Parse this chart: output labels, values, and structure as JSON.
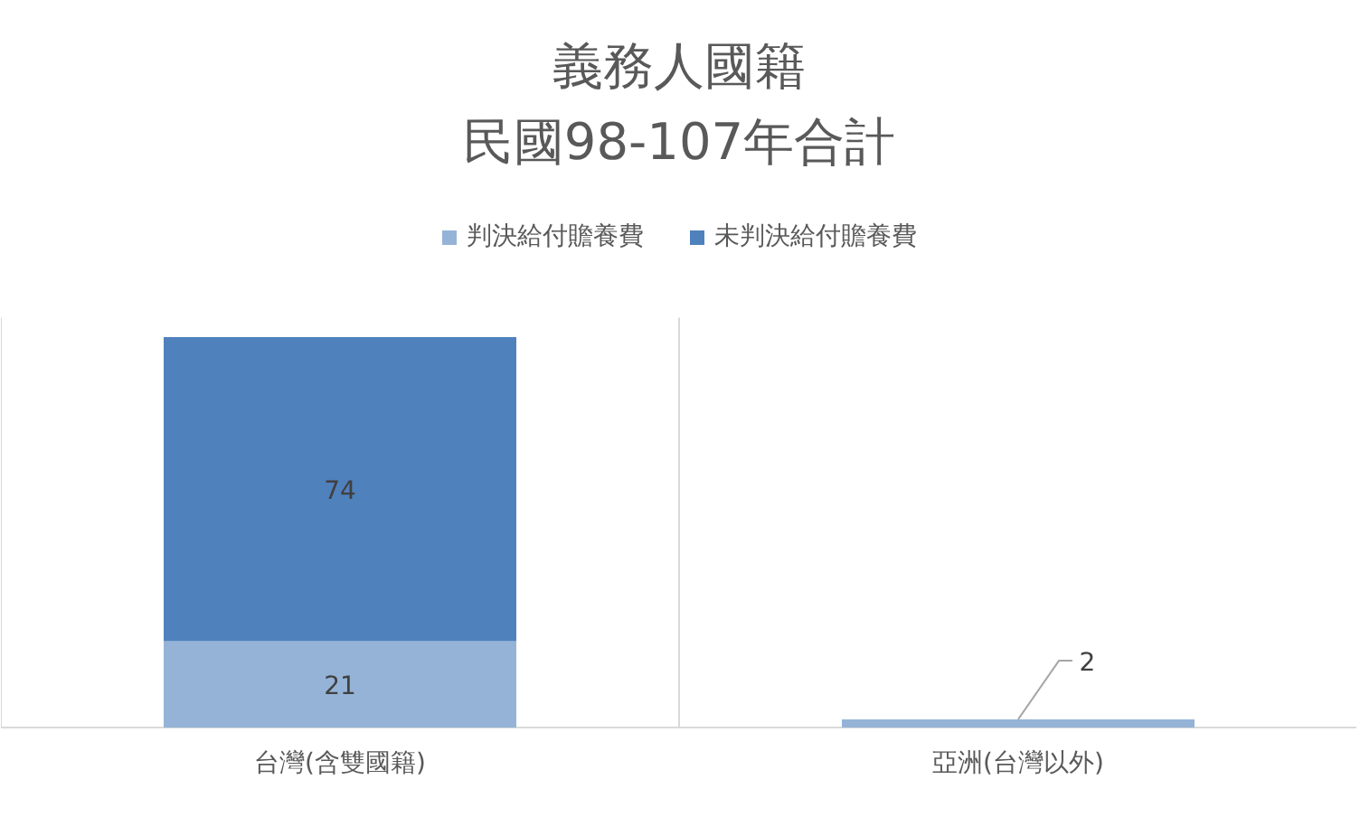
{
  "chart_data": {
    "type": "bar",
    "title": "義務人國籍",
    "subtitle": "民國98-107年合計",
    "stacked": true,
    "categories": [
      "台灣(含雙國籍)",
      "亞洲(台灣以外)"
    ],
    "series": [
      {
        "name": "判決給付贍養費",
        "color": "#95b3d7",
        "values": [
          21,
          2
        ]
      },
      {
        "name": "未判決給付贍養費",
        "color": "#4f81bd",
        "values": [
          74,
          null
        ]
      }
    ],
    "data_labels": true,
    "legend": "top",
    "grid": "x"
  }
}
